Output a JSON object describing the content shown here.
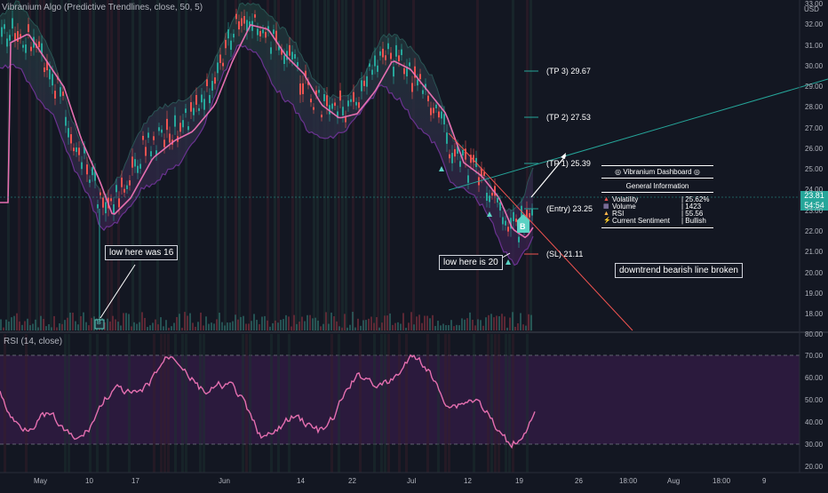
{
  "header": {
    "title": "Vibranium Algo (Predictive Trendlines, close, 50, 5)",
    "currency": "USD"
  },
  "price_axis": {
    "ticks": [
      "33.00",
      "32.00",
      "31.00",
      "30.00",
      "29.00",
      "28.00",
      "27.00",
      "26.00",
      "25.00",
      "24.00",
      "23.00",
      "22.00",
      "21.00",
      "20.00",
      "19.00",
      "18.00"
    ],
    "last_price": "23.81",
    "countdown": "54:54"
  },
  "rsi_panel": {
    "title": "RSI (14, close)",
    "ticks": [
      "80.00",
      "70.00",
      "60.00",
      "50.00",
      "40.00",
      "30.00",
      "20.00"
    ]
  },
  "time_axis": {
    "labels": [
      "May",
      "10",
      "17",
      "Jun",
      "14",
      "22",
      "Jul",
      "12",
      "19",
      "26",
      "18:00",
      "Aug",
      "18:00",
      "9"
    ]
  },
  "levels": {
    "tp3": "(TP 3) 29.67",
    "tp2": "(TP 2) 27.53",
    "tp1": "(TP 1) 25.39",
    "entry": "(Entry) 23.25",
    "sl": "(SL) 21.11"
  },
  "annotations": {
    "low16": "low here was 16",
    "low20": "low here is 20",
    "downtrend": "downtrend bearish line broken",
    "buy_marker": "B",
    "low_marker": "B"
  },
  "dashboard": {
    "title": "Vibranium Dashboard",
    "subtitle": "General Information",
    "rows": [
      {
        "key": "Volatility",
        "value": "| 25.62%",
        "icon": "warning-icon"
      },
      {
        "key": "Volume",
        "value": "| 1423",
        "icon": "chart-icon"
      },
      {
        "key": "RSI",
        "value": "| 55.56",
        "icon": "gauge-icon"
      },
      {
        "key": "Current Sentiment",
        "value": "| Bullish",
        "icon": "bolt-icon"
      }
    ]
  },
  "colors": {
    "bg": "#131722",
    "teal": "#26a69a",
    "pink": "#e56fb0",
    "purple": "#7b3fa0",
    "red": "#ef5350",
    "rsi_bg": "#2b1a3d"
  }
}
